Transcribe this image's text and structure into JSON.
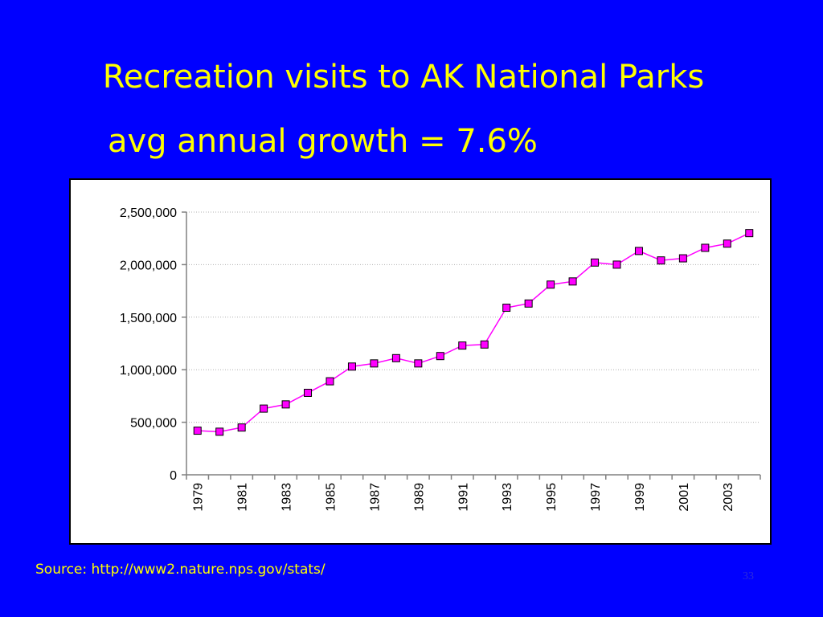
{
  "slide": {
    "title": "Recreation visits to AK National Parks",
    "subtitle": "avg annual growth = 7.6%",
    "source": "Source: http://www2.nature.nps.gov/stats/",
    "page_number": "33"
  },
  "colors": {
    "background": "#0000ff",
    "text": "#ffff00",
    "series_line": "#ff00ff",
    "marker_fill": "#ff00ff"
  },
  "chart_data": {
    "type": "line",
    "title": "",
    "xlabel": "",
    "ylabel": "",
    "grid": true,
    "ylim": [
      0,
      2500000
    ],
    "y_ticks": [
      {
        "value": 0,
        "label": "0"
      },
      {
        "value": 500000,
        "label": "500,000"
      },
      {
        "value": 1000000,
        "label": "1,000,000"
      },
      {
        "value": 1500000,
        "label": "1,500,000"
      },
      {
        "value": 2000000,
        "label": "2,000,000"
      },
      {
        "value": 2500000,
        "label": "2,500,000"
      }
    ],
    "x": [
      1979,
      1980,
      1981,
      1982,
      1983,
      1984,
      1985,
      1986,
      1987,
      1988,
      1989,
      1990,
      1991,
      1992,
      1993,
      1994,
      1995,
      1996,
      1997,
      1998,
      1999,
      2000,
      2001,
      2002,
      2003,
      2004
    ],
    "x_tick_labels": [
      "1979",
      "1981",
      "1983",
      "1985",
      "1987",
      "1989",
      "1991",
      "1993",
      "1995",
      "1997",
      "1999",
      "2001",
      "2003"
    ],
    "series": [
      {
        "values": [
          420000,
          410000,
          450000,
          630000,
          670000,
          780000,
          890000,
          1030000,
          1060000,
          1110000,
          1060000,
          1130000,
          1230000,
          1240000,
          1590000,
          1630000,
          1810000,
          1840000,
          2020000,
          2000000,
          2130000,
          2040000,
          2060000,
          2160000,
          2200000,
          2300000
        ]
      }
    ]
  }
}
